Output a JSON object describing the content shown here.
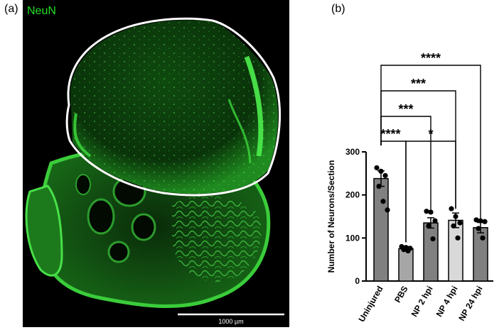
{
  "panel_a": {
    "label": "(a)",
    "stain_label": "NeuN",
    "stain_color": "#22dd22",
    "scale_bar_label": "1000 µm",
    "image_description_name": "spinal-cord-section-micrograph"
  },
  "panel_b": {
    "label": "(b)"
  },
  "chart_data": {
    "type": "bar",
    "title": "",
    "xlabel": "",
    "ylabel": "Number of Neurons/Section",
    "ylim": [
      0,
      300
    ],
    "yticks": [
      0,
      100,
      200,
      300
    ],
    "categories": [
      "Uninjured",
      "PBS",
      "NP 2 hpi",
      "NP 4 hpi",
      "NP 24 hpi"
    ],
    "values": [
      238,
      75,
      135,
      141,
      124
    ],
    "errors": [
      18,
      5,
      12,
      17,
      12
    ],
    "bar_colors": [
      "#808080",
      "#a6a6a6",
      "#808080",
      "#d9d9d9",
      "#808080"
    ],
    "points": [
      [
        263,
        255,
        245,
        220,
        185,
        165
      ],
      [
        80,
        78,
        76,
        73,
        70
      ],
      [
        162,
        160,
        140,
        128,
        98
      ],
      [
        168,
        150,
        135,
        128,
        100
      ],
      [
        142,
        140,
        138,
        122,
        100
      ]
    ],
    "significance": [
      {
        "from": 0,
        "to": 4,
        "label": "****"
      },
      {
        "from": 0,
        "to": 3,
        "label": "***"
      },
      {
        "from": 0,
        "to": 2,
        "label": "***"
      },
      {
        "from": 0,
        "to": 1,
        "label": "****"
      },
      {
        "from": 1,
        "to": 3,
        "label": "*"
      }
    ],
    "grid": false,
    "legend": "none"
  }
}
